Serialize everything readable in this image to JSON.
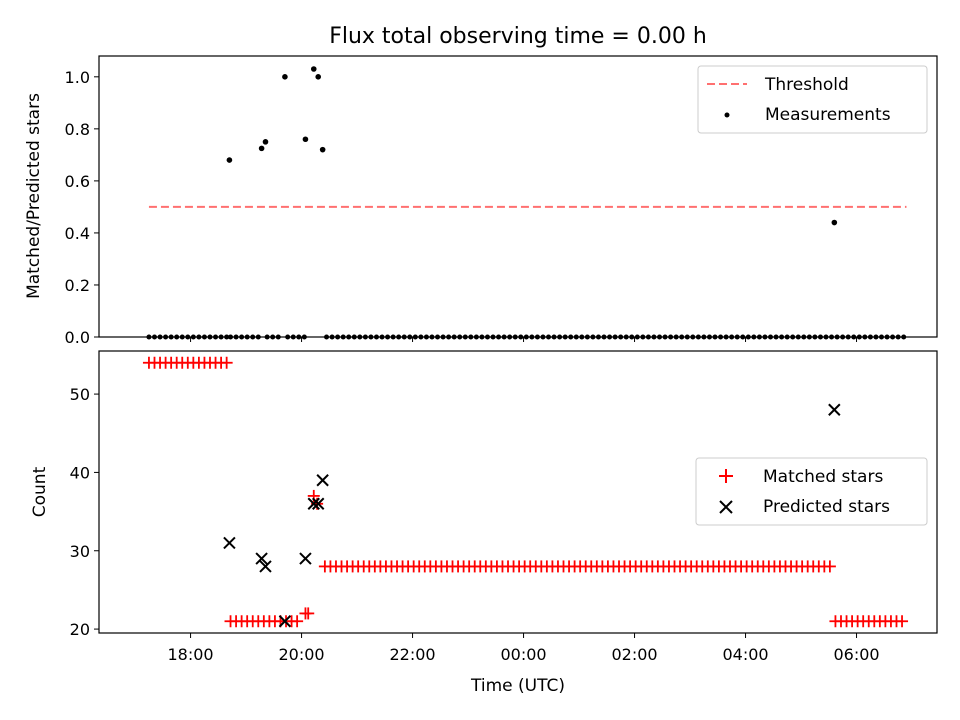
{
  "chart_data": {
    "title": "Flux total observing time = 0.00 h",
    "xlabel": "Time (UTC)",
    "x_ticks": [
      "18:00",
      "20:00",
      "22:00",
      "00:00",
      "02:00",
      "04:00",
      "06:00"
    ],
    "x_tick_hours": [
      18,
      20,
      22,
      24,
      26,
      28,
      30
    ],
    "xlim_hours": [
      16.35,
      31.45
    ],
    "panels": [
      {
        "type": "scatter",
        "ylabel": "Matched/Predicted stars",
        "ylim": [
          0,
          1.08
        ],
        "y_ticks": [
          0.0,
          0.2,
          0.4,
          0.6,
          0.8,
          1.0
        ],
        "y_tick_labels": [
          "0.0",
          "0.2",
          "0.4",
          "0.6",
          "0.8",
          "1.0"
        ],
        "legend": [
          "Threshold",
          "Measurements"
        ],
        "legend_position": "top-right",
        "threshold": {
          "name": "Threshold",
          "y": 0.5,
          "x_range_hours": [
            17.25,
            30.9
          ],
          "color": "#ff7070",
          "style": "dashed"
        },
        "measurements": {
          "name": "Measurements",
          "color": "#000000",
          "points": [
            [
              18.7,
              0.68
            ],
            [
              19.28,
              0.725
            ],
            [
              19.35,
              0.75
            ],
            [
              19.7,
              1.0
            ],
            [
              20.07,
              0.76
            ],
            [
              20.22,
              1.03
            ],
            [
              20.3,
              1.0
            ],
            [
              20.38,
              0.72
            ],
            [
              29.6,
              0.44
            ]
          ],
          "zero_ranges_hours": [
            [
              17.25,
              18.65
            ],
            [
              18.72,
              19.25
            ],
            [
              19.38,
              19.65
            ],
            [
              19.75,
              20.05
            ],
            [
              20.45,
              29.55
            ],
            [
              29.65,
              30.9
            ]
          ]
        }
      },
      {
        "type": "scatter",
        "ylabel": "Count",
        "ylim": [
          19.5,
          55.5
        ],
        "y_ticks": [
          20,
          30,
          40,
          50
        ],
        "y_tick_labels": [
          "20",
          "30",
          "40",
          "50"
        ],
        "legend": [
          "Matched stars",
          "Predicted stars"
        ],
        "legend_position": "center-right",
        "series": [
          {
            "name": "Matched stars",
            "marker": "+",
            "color": "#ff0000",
            "segments": [
              {
                "y": 54,
                "x_range_hours": [
                  17.25,
                  18.65
                ]
              },
              {
                "y": 21,
                "x_range_hours": [
                  18.72,
                  20.0
                ]
              },
              {
                "y": 28,
                "x_range_hours": [
                  20.42,
                  29.55
                ]
              },
              {
                "y": 21,
                "x_range_hours": [
                  29.62,
                  30.9
                ]
              }
            ],
            "points": [
              [
                20.07,
                22
              ],
              [
                20.12,
                22
              ],
              [
                20.22,
                37
              ],
              [
                20.28,
                36
              ]
            ]
          },
          {
            "name": "Predicted stars",
            "marker": "x",
            "color": "#000000",
            "points": [
              [
                18.7,
                31
              ],
              [
                19.28,
                29
              ],
              [
                19.35,
                28
              ],
              [
                19.7,
                21
              ],
              [
                20.07,
                29
              ],
              [
                20.22,
                36
              ],
              [
                20.3,
                36
              ],
              [
                20.38,
                39
              ],
              [
                29.6,
                48
              ]
            ]
          }
        ]
      }
    ]
  }
}
